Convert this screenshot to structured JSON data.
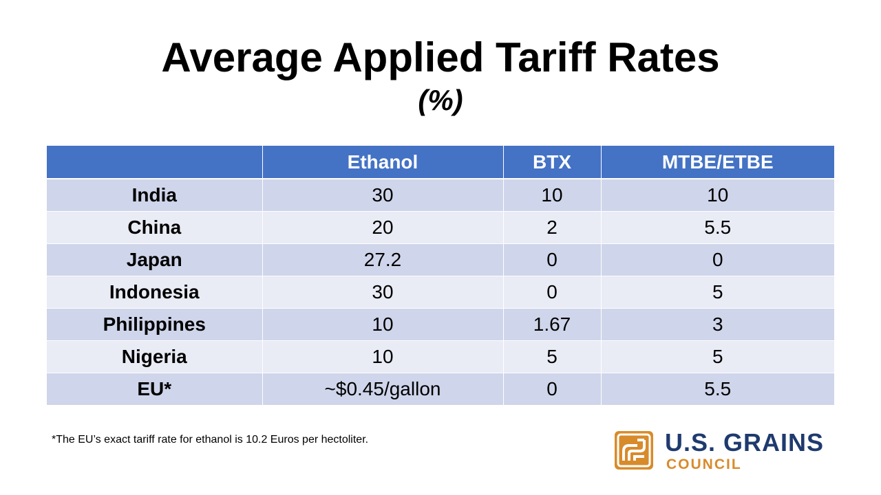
{
  "slide": {
    "title": "Average Applied Tariff Rates",
    "subtitle": "(%)"
  },
  "table": {
    "headers": [
      "",
      "Ethanol",
      "BTX",
      "MTBE/ETBE"
    ],
    "rows": [
      {
        "country": "India",
        "ethanol": "30",
        "btx": "10",
        "mtbe": "10"
      },
      {
        "country": "China",
        "ethanol": "20",
        "btx": "2",
        "mtbe": "5.5"
      },
      {
        "country": "Japan",
        "ethanol": "27.2",
        "btx": "0",
        "mtbe": "0"
      },
      {
        "country": "Indonesia",
        "ethanol": "30",
        "btx": "0",
        "mtbe": "5"
      },
      {
        "country": "Philippines",
        "ethanol": "10",
        "btx": "1.67",
        "mtbe": "3"
      },
      {
        "country": "Nigeria",
        "ethanol": "10",
        "btx": "5",
        "mtbe": "5"
      },
      {
        "country": "EU*",
        "ethanol": "~$0.45/gallon",
        "btx": "0",
        "mtbe": "5.5"
      }
    ]
  },
  "footnote": "*The EU’s exact tariff rate for ethanol is 10.2 Euros per hectoliter.",
  "logo": {
    "name": "U.S. GRAINS",
    "sub": "COUNCIL",
    "icon": "grain-leaf-logo-icon",
    "colors": {
      "navy": "#1f3a6e",
      "orange": "#d88b2a"
    }
  },
  "colors": {
    "header": "#4472c4",
    "row_dark": "#cfd5ea",
    "row_light": "#e9ebf5"
  }
}
